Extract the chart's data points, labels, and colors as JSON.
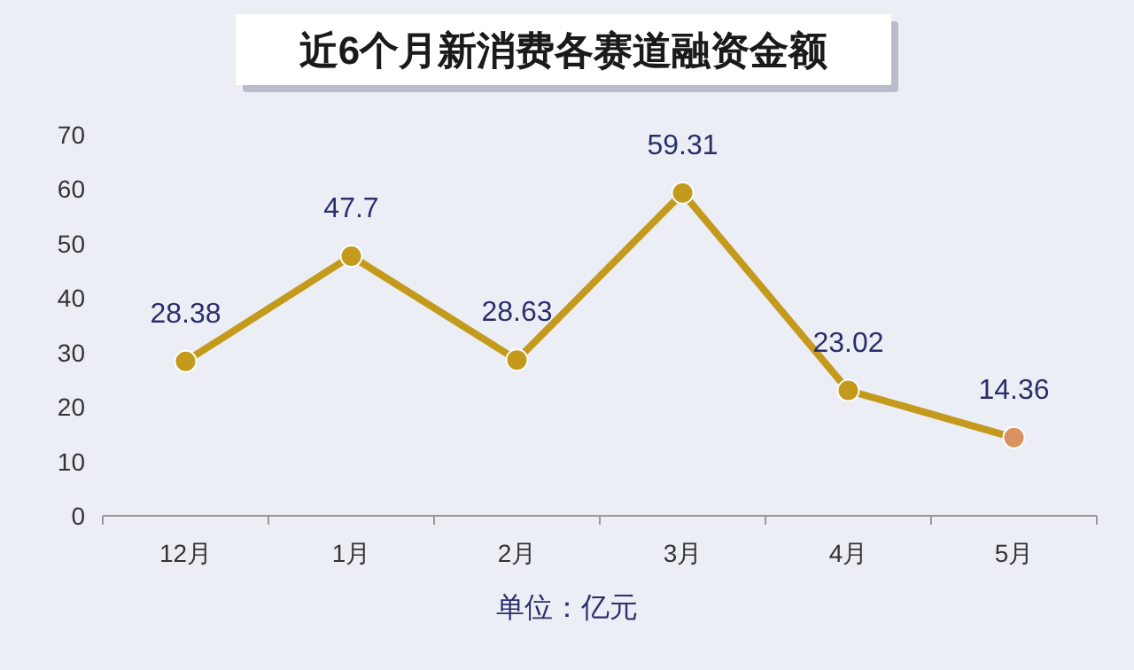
{
  "chart_data": {
    "type": "line",
    "title": "近6个月新消费各赛道融资金额",
    "categories": [
      "12月",
      "1月",
      "2月",
      "3月",
      "4月",
      "5月"
    ],
    "series": [
      {
        "color": "#c49a1c",
        "colors": [
          "#c49a1c",
          "#c49a1c",
          "#c49a1c",
          "#c49a1c",
          "#c49a1c",
          "#d9925f"
        ],
        "values": [
          28.38,
          47.7,
          28.63,
          59.31,
          23.02,
          14.36
        ]
      }
    ],
    "ylim": [
      0,
      70
    ],
    "yticks": [
      0,
      10,
      20,
      30,
      40,
      50,
      60,
      70
    ],
    "marker": "circle",
    "data_labels": true,
    "grid": false,
    "annotations": [
      "单位：亿元"
    ]
  }
}
